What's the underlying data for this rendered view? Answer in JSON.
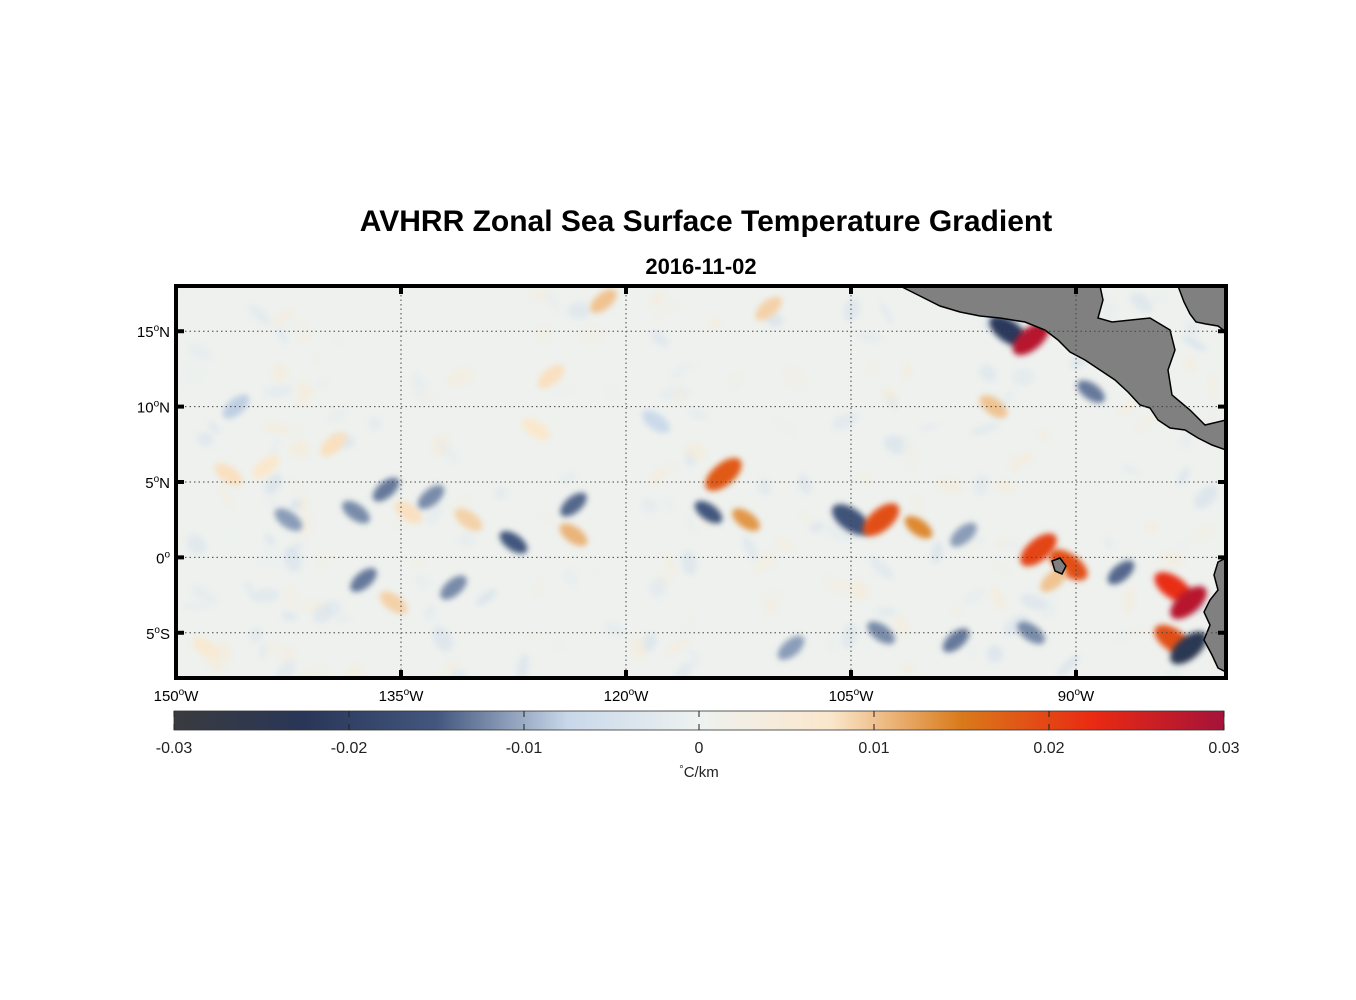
{
  "title": "AVHRR Zonal Sea Surface Temperature Gradient",
  "subtitle": "2016-11-02",
  "lat_ticks": [
    {
      "value": 15,
      "label": "15",
      "suffix": "N"
    },
    {
      "value": 10,
      "label": "10",
      "suffix": "N"
    },
    {
      "value": 5,
      "label": "5",
      "suffix": "N"
    },
    {
      "value": 0,
      "label": "0",
      "suffix": ""
    },
    {
      "value": -5,
      "label": "5",
      "suffix": "S"
    }
  ],
  "lon_ticks": [
    {
      "value": -150,
      "label": "150",
      "suffix": "W"
    },
    {
      "value": -135,
      "label": "135",
      "suffix": "W"
    },
    {
      "value": -120,
      "label": "120",
      "suffix": "W"
    },
    {
      "value": -105,
      "label": "105",
      "suffix": "W"
    },
    {
      "value": -90,
      "label": "90",
      "suffix": "W"
    }
  ],
  "extent": {
    "lon_min": -150,
    "lon_max": -80,
    "lat_min": -8,
    "lat_max": 18
  },
  "colorbar": {
    "ticks": [
      -0.03,
      -0.02,
      -0.01,
      0,
      0.01,
      0.02,
      0.03
    ],
    "tick_labels": [
      "-0.03",
      "-0.02",
      "-0.01",
      "0",
      "0.01",
      "0.02",
      "0.03"
    ],
    "unit": "C/km",
    "unit_degree_symbol": "°",
    "colors": [
      "#3a3b3f",
      "#293658",
      "#43577e",
      "#c8d8ea",
      "#eef2f0",
      "#fbe7cc",
      "#d97a1a",
      "#ea2a12",
      "#a5123a"
    ]
  },
  "land_color": "#808080",
  "chart_data": {
    "type": "heatmap",
    "title": "AVHRR Zonal Sea Surface Temperature Gradient",
    "subtitle": "2016-11-02",
    "xlabel": "",
    "ylabel": "",
    "xlim": [
      -150,
      -80
    ],
    "ylim": [
      -8,
      18
    ],
    "color_range": [
      -0.03,
      0.03
    ],
    "colorbar_label": "°C/km",
    "grid": true,
    "features": [
      {
        "lon": -146.5,
        "lat": 5.5,
        "value": 0.008
      },
      {
        "lon": -144.0,
        "lat": 6.0,
        "value": 0.007
      },
      {
        "lon": -142.5,
        "lat": 2.5,
        "value": -0.011
      },
      {
        "lon": -139.5,
        "lat": 7.5,
        "value": 0.008
      },
      {
        "lon": -138.0,
        "lat": 3.0,
        "value": -0.012
      },
      {
        "lon": -136.0,
        "lat": 4.5,
        "value": -0.013
      },
      {
        "lon": -134.5,
        "lat": 3.0,
        "value": 0.008
      },
      {
        "lon": -133.0,
        "lat": 4.0,
        "value": -0.012
      },
      {
        "lon": -130.5,
        "lat": 2.5,
        "value": 0.009
      },
      {
        "lon": -137.5,
        "lat": -1.5,
        "value": -0.013
      },
      {
        "lon": -135.5,
        "lat": -3.0,
        "value": 0.009
      },
      {
        "lon": -131.5,
        "lat": -2.0,
        "value": -0.012
      },
      {
        "lon": -127.5,
        "lat": 1.0,
        "value": -0.015
      },
      {
        "lon": -123.5,
        "lat": 3.5,
        "value": -0.014
      },
      {
        "lon": -123.5,
        "lat": 1.5,
        "value": 0.011
      },
      {
        "lon": -121.5,
        "lat": 17.0,
        "value": 0.01
      },
      {
        "lon": -126.0,
        "lat": 8.5,
        "value": 0.007
      },
      {
        "lon": -125.0,
        "lat": 12.0,
        "value": 0.008
      },
      {
        "lon": -114.5,
        "lat": 3.0,
        "value": -0.015
      },
      {
        "lon": -113.5,
        "lat": 5.5,
        "value": 0.018
      },
      {
        "lon": -112.0,
        "lat": 2.5,
        "value": 0.013
      },
      {
        "lon": -110.5,
        "lat": 16.5,
        "value": 0.009
      },
      {
        "lon": -105.0,
        "lat": 2.5,
        "value": -0.016
      },
      {
        "lon": -103.0,
        "lat": 2.5,
        "value": 0.019
      },
      {
        "lon": -100.5,
        "lat": 2.0,
        "value": 0.014
      },
      {
        "lon": -97.5,
        "lat": 1.5,
        "value": -0.011
      },
      {
        "lon": -94.5,
        "lat": 15.0,
        "value": -0.022
      },
      {
        "lon": -93.0,
        "lat": 14.5,
        "value": 0.028
      },
      {
        "lon": -95.5,
        "lat": 10.0,
        "value": 0.01
      },
      {
        "lon": -92.5,
        "lat": 0.5,
        "value": 0.02
      },
      {
        "lon": -90.5,
        "lat": -0.5,
        "value": 0.019
      },
      {
        "lon": -91.5,
        "lat": -1.5,
        "value": 0.01
      },
      {
        "lon": -89.0,
        "lat": 11.0,
        "value": -0.013
      },
      {
        "lon": -87.0,
        "lat": -1.0,
        "value": -0.014
      },
      {
        "lon": -83.5,
        "lat": -2.0,
        "value": 0.022
      },
      {
        "lon": -82.5,
        "lat": -3.0,
        "value": 0.028
      },
      {
        "lon": -83.5,
        "lat": -5.5,
        "value": 0.019
      },
      {
        "lon": -82.5,
        "lat": -6.0,
        "value": -0.024
      },
      {
        "lon": -103.0,
        "lat": -5.0,
        "value": -0.012
      },
      {
        "lon": -98.0,
        "lat": -5.5,
        "value": -0.013
      },
      {
        "lon": -93.0,
        "lat": -5.0,
        "value": -0.012
      },
      {
        "lon": -109.0,
        "lat": -6.0,
        "value": -0.011
      },
      {
        "lon": -148.0,
        "lat": -6.0,
        "value": 0.006
      },
      {
        "lon": -146.0,
        "lat": 10.0,
        "value": -0.008
      },
      {
        "lon": -118.0,
        "lat": 9.0,
        "value": -0.007
      }
    ]
  }
}
